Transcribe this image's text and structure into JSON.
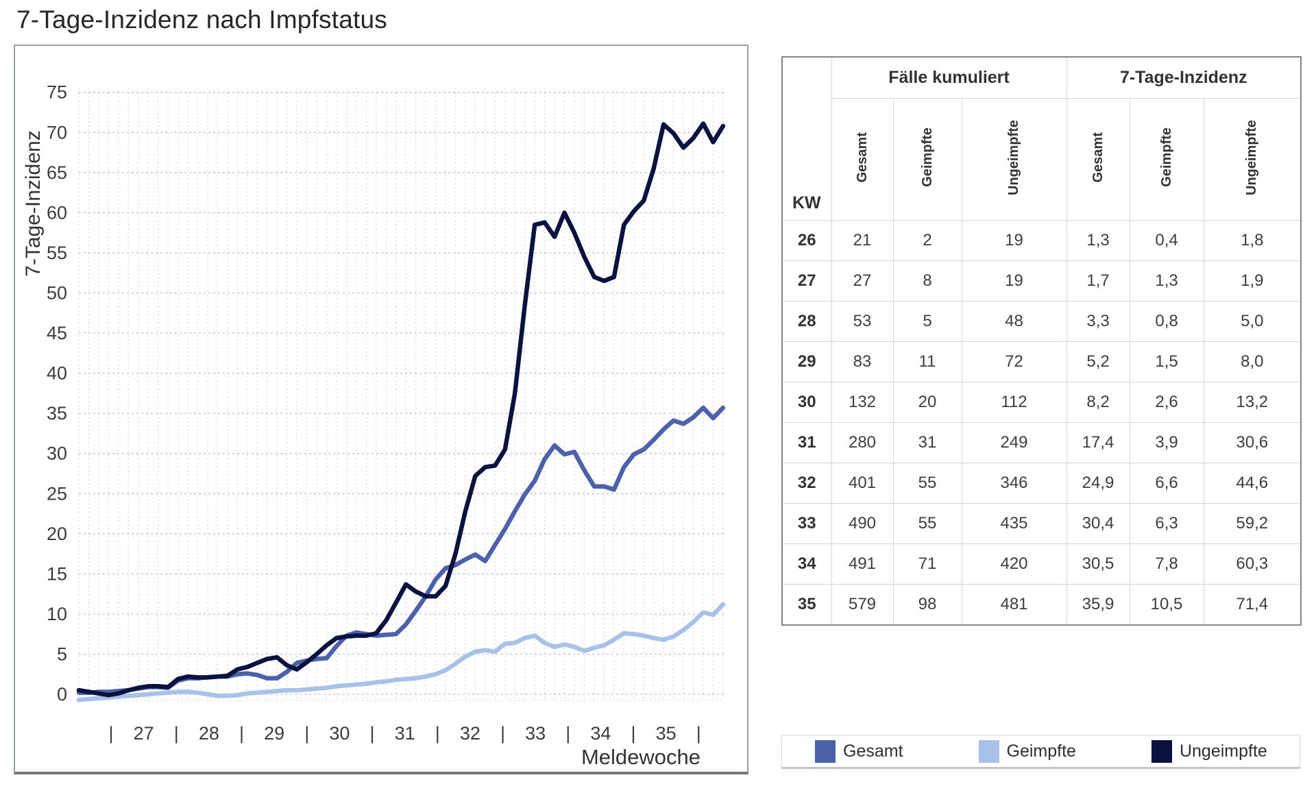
{
  "title": "7-Tage-Inzidenz nach Impfstatus",
  "chart_data": {
    "type": "line",
    "title": "7-Tage-Inzidenz nach Impfstatus",
    "xlabel": "Meldewoche",
    "ylabel": "7-Tage-Inzidenz",
    "x_tick_weeks": [
      27,
      28,
      29,
      30,
      31,
      32,
      33,
      34,
      35
    ],
    "x_range_weeks": [
      26.5,
      36.3
    ],
    "ylim": [
      -0.8,
      75.5
    ],
    "yticks": [
      0,
      5,
      10,
      15,
      20,
      25,
      30,
      35,
      40,
      45,
      50,
      55,
      60,
      65,
      70,
      75
    ],
    "grid": true,
    "legend_position": "bottom-right-box",
    "sampling": "daily",
    "series": [
      {
        "name": "Gesamt",
        "color": "#4b61a9",
        "values": [
          0.2,
          0.2,
          0.3,
          0.3,
          0.4,
          0.5,
          0.7,
          0.9,
          0.9,
          0.8,
          1.7,
          2.0,
          2.0,
          2.1,
          2.2,
          2.2,
          2.5,
          2.6,
          2.4,
          2.0,
          2.0,
          2.8,
          3.9,
          4.2,
          4.4,
          4.5,
          6.0,
          7.3,
          7.7,
          7.5,
          7.3,
          7.4,
          7.5,
          8.7,
          10.4,
          12.2,
          14.3,
          15.7,
          16.1,
          16.8,
          17.4,
          16.6,
          18.6,
          20.6,
          22.8,
          24.9,
          26.6,
          29.3,
          31.0,
          29.9,
          30.2,
          27.9,
          25.9,
          25.9,
          25.5,
          28.3,
          29.9,
          30.5,
          31.7,
          33.0,
          34.1,
          33.7,
          34.5,
          35.7,
          34.4,
          35.7
        ]
      },
      {
        "name": "Geimpfte",
        "color": "#a7c1e8",
        "values": [
          -0.7,
          -0.6,
          -0.5,
          -0.4,
          -0.3,
          -0.2,
          -0.1,
          0.0,
          0.1,
          0.2,
          0.3,
          0.3,
          0.2,
          0.0,
          -0.2,
          -0.2,
          -0.1,
          0.1,
          0.2,
          0.3,
          0.4,
          0.5,
          0.5,
          0.6,
          0.7,
          0.8,
          1.0,
          1.1,
          1.2,
          1.3,
          1.5,
          1.6,
          1.8,
          1.9,
          2.0,
          2.2,
          2.5,
          3.0,
          3.8,
          4.7,
          5.3,
          5.5,
          5.3,
          6.3,
          6.4,
          7.0,
          7.3,
          6.4,
          5.9,
          6.2,
          5.9,
          5.4,
          5.8,
          6.1,
          6.8,
          7.6,
          7.5,
          7.3,
          7.0,
          6.8,
          7.2,
          8.0,
          9.0,
          10.2,
          9.9,
          11.2
        ]
      },
      {
        "name": "Ungeimpfte",
        "color": "#0c123f",
        "values": [
          0.5,
          0.3,
          0.1,
          -0.1,
          0.1,
          0.5,
          0.8,
          1.0,
          1.0,
          0.9,
          1.9,
          2.2,
          2.1,
          2.1,
          2.2,
          2.3,
          3.1,
          3.4,
          3.9,
          4.4,
          4.6,
          3.6,
          3.1,
          4.0,
          5.0,
          6.1,
          7.0,
          7.2,
          7.3,
          7.3,
          7.6,
          9.2,
          11.4,
          13.7,
          12.8,
          12.2,
          12.2,
          13.5,
          17.5,
          22.8,
          27.2,
          28.3,
          28.5,
          30.5,
          37.5,
          48.5,
          58.5,
          58.8,
          57.0,
          60.0,
          57.5,
          54.5,
          52.0,
          51.5,
          52.0,
          58.5,
          60.2,
          61.5,
          65.5,
          71.0,
          69.9,
          68.1,
          69.3,
          71.1,
          68.8,
          70.8
        ]
      }
    ]
  },
  "table": {
    "kw_header": "KW",
    "col_groups": [
      "Fälle kumuliert",
      "7-Tage-Inzidenz"
    ],
    "sub_headers": [
      "Gesamt",
      "Geimpfte",
      "Ungeimpfte",
      "Gesamt",
      "Geimpfte",
      "Ungeimpfte"
    ],
    "rows": [
      {
        "kw": "26",
        "cells": [
          "21",
          "2",
          "19",
          "1,3",
          "0,4",
          "1,8"
        ]
      },
      {
        "kw": "27",
        "cells": [
          "27",
          "8",
          "19",
          "1,7",
          "1,3",
          "1,9"
        ]
      },
      {
        "kw": "28",
        "cells": [
          "53",
          "5",
          "48",
          "3,3",
          "0,8",
          "5,0"
        ]
      },
      {
        "kw": "29",
        "cells": [
          "83",
          "11",
          "72",
          "5,2",
          "1,5",
          "8,0"
        ]
      },
      {
        "kw": "30",
        "cells": [
          "132",
          "20",
          "112",
          "8,2",
          "2,6",
          "13,2"
        ]
      },
      {
        "kw": "31",
        "cells": [
          "280",
          "31",
          "249",
          "17,4",
          "3,9",
          "30,6"
        ]
      },
      {
        "kw": "32",
        "cells": [
          "401",
          "55",
          "346",
          "24,9",
          "6,6",
          "44,6"
        ]
      },
      {
        "kw": "33",
        "cells": [
          "490",
          "55",
          "435",
          "30,4",
          "6,3",
          "59,2"
        ]
      },
      {
        "kw": "34",
        "cells": [
          "491",
          "71",
          "420",
          "30,5",
          "7,8",
          "60,3"
        ]
      },
      {
        "kw": "35",
        "cells": [
          "579",
          "98",
          "481",
          "35,9",
          "10,5",
          "71,4"
        ]
      }
    ]
  },
  "legend": {
    "items": [
      {
        "label": "Gesamt",
        "color": "#4b61a9"
      },
      {
        "label": "Geimpfte",
        "color": "#a7c1e8"
      },
      {
        "label": "Ungeimpfte",
        "color": "#0c123f"
      }
    ]
  },
  "colors": {
    "grid_vertical": "#cbd0d6",
    "grid_horizontal": "#bcc0c6",
    "axis_text": "#3c3c3c"
  }
}
